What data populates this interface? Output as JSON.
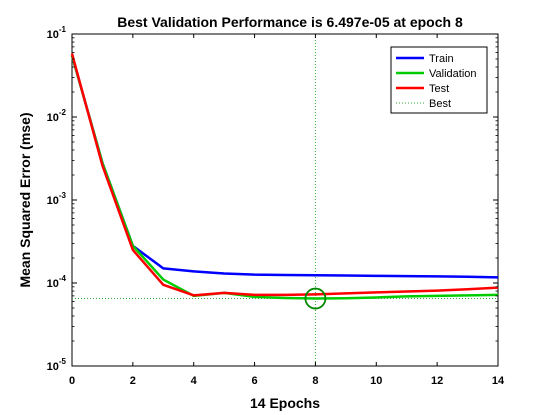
{
  "chart_data": {
    "type": "line",
    "title": "Best Validation Performance is 6.497e-05 at epoch 8",
    "xlabel": "14 Epochs",
    "ylabel": "Mean Squared Error  (mse)",
    "xlim": [
      0,
      14
    ],
    "ylim": [
      1e-05,
      0.1
    ],
    "yscale": "log",
    "xticks": [
      0,
      2,
      4,
      6,
      8,
      10,
      12,
      14
    ],
    "xtick_labels": [
      "0",
      "2",
      "4",
      "6",
      "8",
      "10",
      "12",
      "14"
    ],
    "yticks": [
      {
        "base": "10",
        "exp": "-5",
        "value": 1e-05
      },
      {
        "base": "10",
        "exp": "-4",
        "value": 0.0001
      },
      {
        "base": "10",
        "exp": "-3",
        "value": 0.001
      },
      {
        "base": "10",
        "exp": "-2",
        "value": 0.01
      },
      {
        "base": "10",
        "exp": "-1",
        "value": 0.1
      }
    ],
    "legend_placement": "top-right",
    "series": [
      {
        "name": "Train",
        "color": "#0000ff",
        "x": [
          0,
          1,
          2,
          3,
          4,
          5,
          6,
          7,
          8,
          9,
          10,
          11,
          12,
          13,
          14
        ],
        "values": [
          0.055,
          0.0028,
          0.00028,
          0.00015,
          0.000138,
          0.00013,
          0.000126,
          0.000125,
          0.000124,
          0.000123,
          0.000122,
          0.000121,
          0.00012,
          0.000119,
          0.000117
        ]
      },
      {
        "name": "Validation",
        "color": "#00cc00",
        "x": [
          0,
          1,
          2,
          3,
          4,
          5,
          6,
          7,
          8,
          9,
          10,
          11,
          12,
          13,
          14
        ],
        "values": [
          0.055,
          0.0028,
          0.00028,
          0.00011,
          7e-05,
          7.6e-05,
          6.8e-05,
          6.6e-05,
          6.497e-05,
          6.55e-05,
          6.7e-05,
          6.9e-05,
          7e-05,
          7.1e-05,
          7.2e-05
        ]
      },
      {
        "name": "Test",
        "color": "#ff0000",
        "x": [
          0,
          1,
          2,
          3,
          4,
          5,
          6,
          7,
          8,
          9,
          10,
          11,
          12,
          13,
          14
        ],
        "values": [
          0.058,
          0.0026,
          0.00025,
          9.5e-05,
          7.1e-05,
          7.6e-05,
          7.2e-05,
          7.2e-05,
          7.3e-05,
          7.5e-05,
          7.7e-05,
          7.9e-05,
          8.1e-05,
          8.4e-05,
          8.8e-05
        ]
      }
    ],
    "best": {
      "name": "Best",
      "color": "#33aa33",
      "epoch": 8,
      "value": 6.497e-05
    },
    "grid": false
  }
}
